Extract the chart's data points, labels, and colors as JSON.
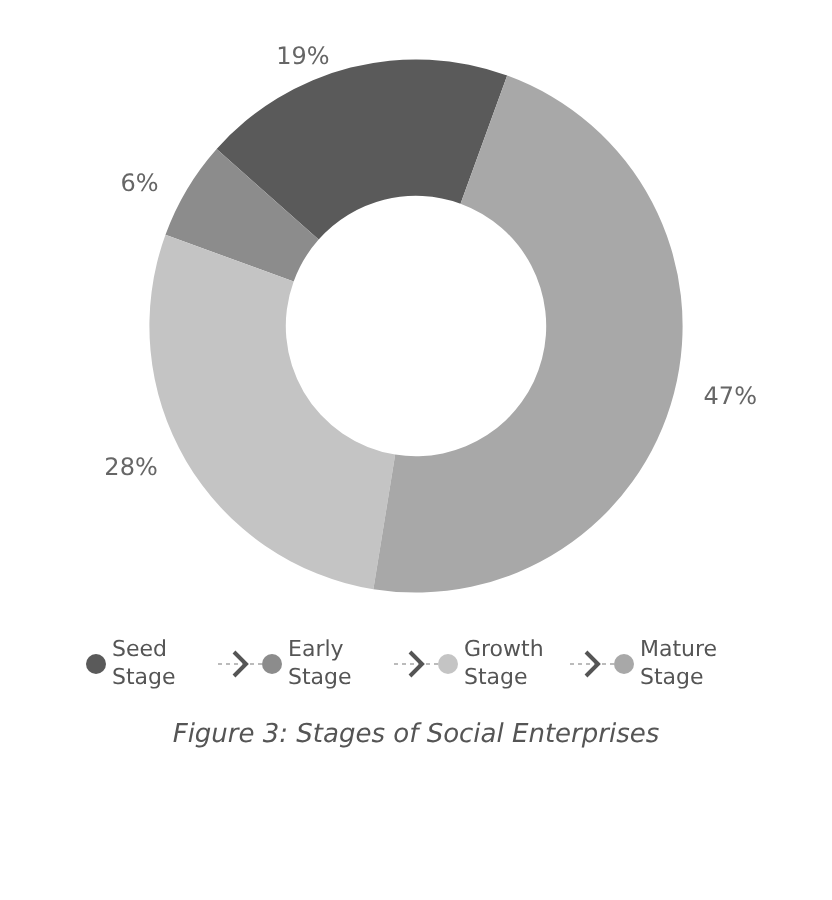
{
  "chart_data": {
    "type": "donut",
    "categories": [
      "Seed Stage",
      "Early Stage",
      "Growth Stage",
      "Mature Stage"
    ],
    "values": [
      19,
      6,
      28,
      47
    ],
    "colors": [
      "#5a5a5a",
      "#8c8c8c",
      "#c4c4c4",
      "#a8a8a8"
    ],
    "value_labels": [
      "19%",
      "6%",
      "28%",
      "47%"
    ],
    "legend": "bottom",
    "annotations": [
      "Figure 3: Stages of Social Enterprises"
    ]
  }
}
